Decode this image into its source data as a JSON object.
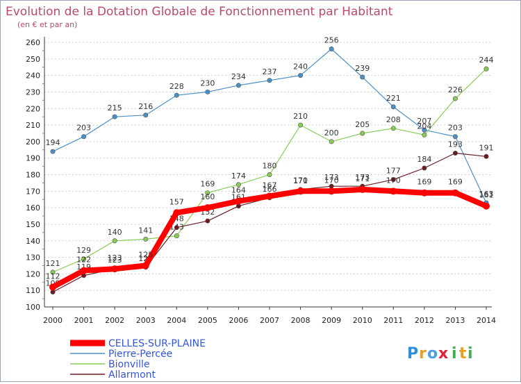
{
  "chart_data": {
    "type": "line",
    "title": "Evolution de la Dotation Globale de Fonctionnement par Habitant",
    "subtitle": "(en € et par an)",
    "x": [
      "2000",
      "2001",
      "2002",
      "2003",
      "2004",
      "2005",
      "2006",
      "2007",
      "2008",
      "2009",
      "2010",
      "2011",
      "2012",
      "2013",
      "2014"
    ],
    "yticks": [
      "100",
      "110",
      "120",
      "130",
      "140",
      "150",
      "160",
      "170",
      "180",
      "190",
      "200",
      "210",
      "220",
      "230",
      "240",
      "250",
      "260"
    ],
    "ylim": [
      100,
      260
    ],
    "series": [
      {
        "name": "CELLES-SUR-PLAINE",
        "color": "#ff0000",
        "values": [
          112,
          122,
          123,
          125,
          157,
          160,
          164,
          167,
          170,
          170,
          171,
          170,
          169,
          169,
          161
        ],
        "labels": [
          "112",
          "122",
          "123",
          "125",
          "157",
          "160",
          "164",
          "167",
          "170",
          "170",
          "171",
          "170",
          "169",
          "169",
          "161"
        ]
      },
      {
        "name": "Pierre-Percée",
        "color": "#4a90c8",
        "values": [
          194,
          203,
          215,
          216,
          228,
          230,
          234,
          237,
          240,
          256,
          239,
          221,
          207,
          203,
          163
        ],
        "labels": [
          "194",
          "203",
          "215",
          "216",
          "228",
          "230",
          "234",
          "237",
          "240",
          "256",
          "239",
          "221",
          "207",
          "203",
          "163"
        ]
      },
      {
        "name": "Bionville",
        "color": "#88cc55",
        "values": [
          121,
          129,
          140,
          141,
          143,
          169,
          174,
          180,
          210,
          200,
          205,
          208,
          204,
          226,
          244
        ],
        "labels": [
          "121",
          "129",
          "140",
          "141",
          "143",
          "169",
          "174",
          "180",
          "210",
          "200",
          "205",
          "208",
          "204",
          "226",
          "244"
        ]
      },
      {
        "name": "Allarmont",
        "color": "#6b1a22",
        "values": [
          109,
          119,
          123,
          124,
          148,
          152,
          161,
          166,
          171,
          173,
          173,
          177,
          184,
          193,
          191
        ],
        "labels": [
          "109",
          "119",
          "123",
          "124",
          "148",
          "152",
          "161",
          "166",
          "171",
          "173",
          "173",
          "177",
          "184",
          "193",
          "191"
        ]
      }
    ],
    "legend_position": "bottom-left",
    "grid": "dashed horizontal"
  },
  "brand": {
    "letters": [
      "P",
      "r",
      "o",
      "x",
      "i",
      "t",
      "i"
    ]
  }
}
